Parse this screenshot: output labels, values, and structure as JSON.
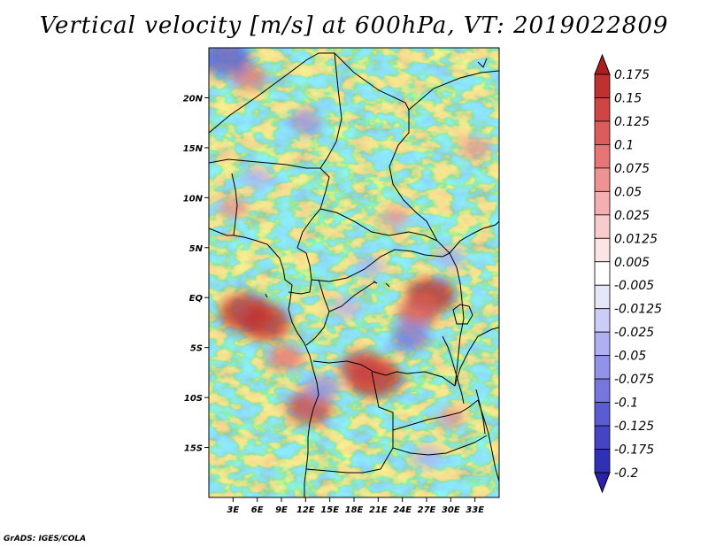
{
  "title": "Vertical velocity [m/s] at 600hPa, VT: 2019022809",
  "credit": "GrADS: IGES/COLA",
  "map": {
    "lon_range": [
      0,
      36
    ],
    "lat_range": [
      -20,
      25
    ],
    "lon_ticks": [
      {
        "value": 3,
        "label": "3E"
      },
      {
        "value": 6,
        "label": "6E"
      },
      {
        "value": 9,
        "label": "9E"
      },
      {
        "value": 12,
        "label": "12E"
      },
      {
        "value": 15,
        "label": "15E"
      },
      {
        "value": 18,
        "label": "18E"
      },
      {
        "value": 21,
        "label": "21E"
      },
      {
        "value": 24,
        "label": "24E"
      },
      {
        "value": 27,
        "label": "27E"
      },
      {
        "value": 30,
        "label": "30E"
      },
      {
        "value": 33,
        "label": "33E"
      }
    ],
    "lat_ticks": [
      {
        "value": 20,
        "label": "20N"
      },
      {
        "value": 15,
        "label": "15N"
      },
      {
        "value": 10,
        "label": "10N"
      },
      {
        "value": 5,
        "label": "5N"
      },
      {
        "value": 0,
        "label": "EQ"
      },
      {
        "value": -5,
        "label": "5S"
      },
      {
        "value": -10,
        "label": "10S"
      },
      {
        "value": -15,
        "label": "15S"
      }
    ],
    "field_hotspots": [
      {
        "lon": 4.5,
        "lat": -1.5,
        "value": 0.15
      },
      {
        "lon": 7.0,
        "lat": -2.5,
        "value": 0.14
      },
      {
        "lon": 27.5,
        "lat": 0.2,
        "value": 0.14
      },
      {
        "lon": 26.0,
        "lat": -1.5,
        "value": 0.1
      },
      {
        "lon": 20.5,
        "lat": -8.0,
        "value": 0.16
      },
      {
        "lon": 19.0,
        "lat": -7.0,
        "value": 0.12
      },
      {
        "lon": 12.5,
        "lat": -11.0,
        "value": 0.12
      },
      {
        "lon": 9.5,
        "lat": -6.0,
        "value": 0.08
      },
      {
        "lon": 5.0,
        "lat": 22.0,
        "value": 0.07
      },
      {
        "lon": 33.0,
        "lat": 15.0,
        "value": 0.05
      },
      {
        "lon": 3.0,
        "lat": 9.0,
        "value": 0.05
      },
      {
        "lon": 23.0,
        "lat": 8.0,
        "value": 0.04
      },
      {
        "lon": 30.0,
        "lat": -12.0,
        "value": 0.04
      },
      {
        "lon": 2.0,
        "lat": 24.0,
        "value": -0.15
      },
      {
        "lon": 12.0,
        "lat": 17.5,
        "value": -0.07
      },
      {
        "lon": 25.0,
        "lat": -4.0,
        "value": -0.09
      },
      {
        "lon": 17.0,
        "lat": -1.0,
        "value": -0.05
      },
      {
        "lon": 14.0,
        "lat": -9.0,
        "value": -0.08
      },
      {
        "lon": 30.0,
        "lat": 4.0,
        "value": -0.05
      },
      {
        "lon": 6.0,
        "lat": 12.0,
        "value": -0.05
      },
      {
        "lon": 20.0,
        "lat": 3.0,
        "value": -0.04
      },
      {
        "lon": 27.0,
        "lat": -16.0,
        "value": -0.05
      }
    ]
  },
  "colorbar": {
    "levels": [
      {
        "label": "0.175",
        "color": "#a81f1f"
      },
      {
        "label": "0.15",
        "color": "#bf3030"
      },
      {
        "label": "0.125",
        "color": "#d04444"
      },
      {
        "label": "0.1",
        "color": "#dc5c5c"
      },
      {
        "label": "0.075",
        "color": "#e67676"
      },
      {
        "label": "0.05",
        "color": "#ee9292"
      },
      {
        "label": "0.025",
        "color": "#f4b0b0"
      },
      {
        "label": "0.0125",
        "color": "#f8cccc"
      },
      {
        "label": "0.005",
        "color": "#fbe4e4"
      },
      {
        "label": "-0.005",
        "color": "#ffffff"
      },
      {
        "label": "-0.0125",
        "color": "#e6e6fb"
      },
      {
        "label": "-0.025",
        "color": "#ccccf6"
      },
      {
        "label": "-0.05",
        "color": "#b0b0f0"
      },
      {
        "label": "-0.075",
        "color": "#9292e8"
      },
      {
        "label": "-0.1",
        "color": "#7676de"
      },
      {
        "label": "-0.125",
        "color": "#5c5cd2"
      },
      {
        "label": "-0.175",
        "color": "#4444c4"
      },
      {
        "label": "-0.2",
        "color": "#3030b4"
      }
    ],
    "top_arrow_color": "#aa1e1e",
    "bottom_arrow_color": "#2a20aa"
  }
}
